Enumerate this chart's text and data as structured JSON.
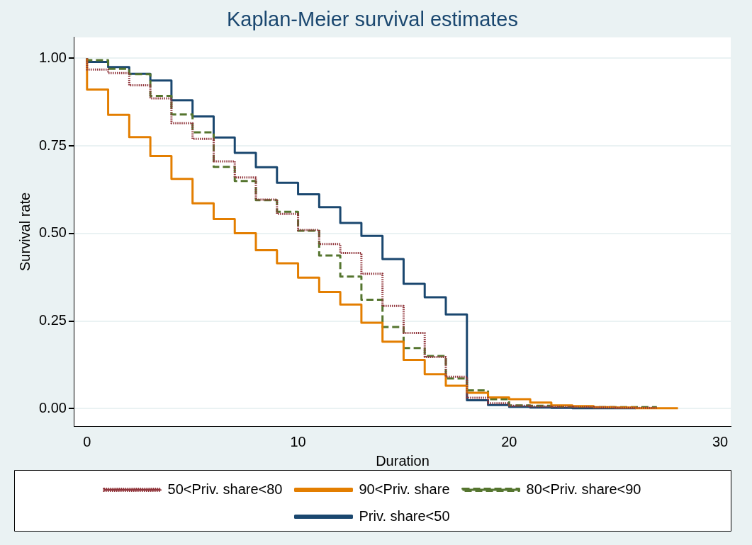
{
  "chart_data": {
    "type": "step",
    "title": "Kaplan-Meier survival estimates",
    "xlabel": "Duration",
    "ylabel": "Survival rate",
    "xlim": [
      -0.6,
      30.5
    ],
    "xticks": [
      0,
      10,
      20,
      30
    ],
    "ylim": [
      -0.05,
      1.06
    ],
    "yticks": [
      {
        "value": 0,
        "label": "0.00"
      },
      {
        "value": 0.25,
        "label": "0.25"
      },
      {
        "value": 0.5,
        "label": "0.50"
      },
      {
        "value": 0.75,
        "label": "0.75"
      },
      {
        "value": 1,
        "label": "1.00"
      }
    ],
    "grid": "y",
    "legend": "bottom",
    "marker": "none",
    "series": [
      {
        "name": "Priv. share<50",
        "color": "#1a476f",
        "line_style": "solid",
        "x": [
          0,
          1,
          2,
          3,
          4,
          5,
          6,
          7,
          8,
          9,
          10,
          11,
          12,
          13,
          14,
          15,
          16,
          17,
          18,
          19,
          20,
          21,
          22,
          23,
          24,
          25,
          26
        ],
        "values": [
          1,
          0.99,
          0.975,
          0.956,
          0.937,
          0.88,
          0.834,
          0.774,
          0.73,
          0.689,
          0.645,
          0.612,
          0.575,
          0.53,
          0.493,
          0.427,
          0.356,
          0.318,
          0.269,
          0.024,
          0.01,
          0.005,
          0.003,
          0.002,
          0.001,
          0.001,
          0.001
        ]
      },
      {
        "name": "50<Priv. share<80",
        "color": "#90353b",
        "line_style": "dotted",
        "x": [
          0,
          1,
          2,
          3,
          4,
          5,
          6,
          7,
          8,
          9,
          10,
          11,
          12,
          13,
          14,
          15,
          16,
          17,
          18,
          19,
          20,
          21,
          22,
          23,
          24,
          25,
          26,
          27
        ],
        "values": [
          1,
          0.968,
          0.958,
          0.923,
          0.886,
          0.815,
          0.77,
          0.706,
          0.66,
          0.597,
          0.556,
          0.51,
          0.47,
          0.444,
          0.385,
          0.293,
          0.216,
          0.147,
          0.091,
          0.031,
          0.015,
          0.008,
          0.006,
          0.005,
          0.004,
          0.003,
          0.002,
          0.002
        ]
      },
      {
        "name": "80<Priv. share<90",
        "color": "#55752f",
        "line_style": "dashed",
        "x": [
          0,
          1,
          2,
          3,
          4,
          5,
          6,
          7,
          8,
          9,
          10,
          11,
          12,
          13,
          14,
          15,
          16,
          17,
          18,
          19,
          20,
          21,
          22,
          23,
          24,
          25,
          26,
          27
        ],
        "values": [
          1,
          0.995,
          0.97,
          0.955,
          0.893,
          0.84,
          0.789,
          0.69,
          0.65,
          0.595,
          0.562,
          0.508,
          0.437,
          0.377,
          0.311,
          0.233,
          0.173,
          0.15,
          0.086,
          0.052,
          0.027,
          0.009,
          0.008,
          0.006,
          0.005,
          0.004,
          0.004,
          0.004
        ]
      },
      {
        "name": "90<Priv. share",
        "color": "#e37e00",
        "line_style": "solid",
        "x": [
          0,
          1,
          2,
          3,
          4,
          5,
          6,
          7,
          8,
          9,
          10,
          11,
          12,
          13,
          14,
          15,
          16,
          17,
          18,
          19,
          20,
          21,
          22,
          23,
          24,
          25,
          26,
          27,
          28
        ],
        "values": [
          1,
          0.911,
          0.839,
          0.775,
          0.721,
          0.656,
          0.586,
          0.541,
          0.501,
          0.452,
          0.415,
          0.374,
          0.333,
          0.297,
          0.245,
          0.191,
          0.139,
          0.098,
          0.065,
          0.045,
          0.032,
          0.027,
          0.017,
          0.009,
          0.007,
          0.004,
          0.003,
          0.001,
          0.001
        ]
      }
    ]
  }
}
